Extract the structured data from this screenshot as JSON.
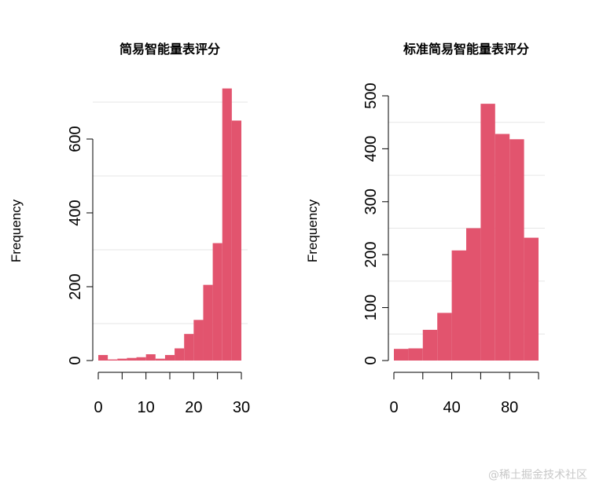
{
  "chart_data": [
    {
      "type": "bar",
      "subtype": "histogram",
      "title": "简易智能量表评分",
      "xlabel": "",
      "ylabel": "Frequency",
      "xlim": [
        0,
        30
      ],
      "ylim": [
        0,
        700
      ],
      "x_ticks": [
        0,
        10,
        20,
        30
      ],
      "y_ticks": [
        0,
        200,
        400,
        600
      ],
      "bin_edges": [
        0,
        2,
        4,
        6,
        8,
        10,
        12,
        14,
        16,
        18,
        20,
        22,
        24,
        26,
        28,
        30
      ],
      "values": [
        15,
        3,
        5,
        7,
        9,
        17,
        5,
        15,
        33,
        72,
        110,
        205,
        318,
        737,
        650
      ],
      "color": "#E2546E",
      "grid": true
    },
    {
      "type": "bar",
      "subtype": "histogram",
      "title": "标准简易智能量表评分",
      "xlabel": "",
      "ylabel": "Frequency",
      "xlim": [
        0,
        100
      ],
      "ylim": [
        0,
        500
      ],
      "x_ticks": [
        0,
        40,
        80
      ],
      "y_ticks": [
        0,
        100,
        200,
        300,
        400,
        500
      ],
      "bin_edges": [
        0,
        10,
        20,
        30,
        40,
        50,
        60,
        70,
        80,
        90,
        100
      ],
      "values": [
        22,
        23,
        58,
        90,
        208,
        250,
        485,
        428,
        418,
        232
      ],
      "color": "#E2546E",
      "grid": true
    }
  ],
  "watermark": "@稀土掘金技术社区"
}
